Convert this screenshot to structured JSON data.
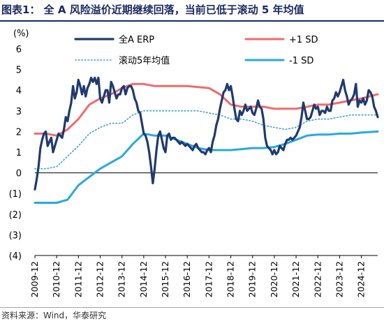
{
  "header": {
    "title": "图表1：  全 A 风险溢价近期继续回落，当前已低于滚动 5 年均值"
  },
  "footer": {
    "source": "资料来源：Wind，华泰研究"
  },
  "chart_data": {
    "type": "line",
    "ylabel": "(%)",
    "ylim": [
      -4,
      6
    ],
    "yticks": [
      "6",
      "5",
      "4",
      "3",
      "2",
      "1",
      "0",
      "(1)",
      "(2)",
      "(3)",
      "(4)"
    ],
    "xlim": [
      "2009-12",
      "2025-09"
    ],
    "categories": [
      "2009-12",
      "2010-12",
      "2011-12",
      "2012-12",
      "2013-12",
      "2014-12",
      "2015-12",
      "2016-12",
      "2017-12",
      "2018-12",
      "2019-12",
      "2020-12",
      "2021-12",
      "2022-12",
      "2023-12",
      "2024-12"
    ],
    "legend_position": "top",
    "grid": false,
    "series": [
      {
        "name": "全A ERP",
        "color": "#1f3a6e",
        "style": "solid-thick",
        "points": [
          [
            "2009-12",
            -0.8
          ],
          [
            "2010-01",
            -0.3
          ],
          [
            "2010-02",
            0.3
          ],
          [
            "2010-03",
            1.2
          ],
          [
            "2010-04",
            1.6
          ],
          [
            "2010-05",
            1.9
          ],
          [
            "2010-06",
            2.0
          ],
          [
            "2010-07",
            1.3
          ],
          [
            "2010-08",
            1.5
          ],
          [
            "2010-09",
            1.7
          ],
          [
            "2010-10",
            1.0
          ],
          [
            "2010-11",
            1.3
          ],
          [
            "2010-12",
            1.6
          ],
          [
            "2011-01",
            1.9
          ],
          [
            "2011-02",
            1.8
          ],
          [
            "2011-03",
            1.7
          ],
          [
            "2011-04",
            2.1
          ],
          [
            "2011-05",
            2.7
          ],
          [
            "2011-06",
            2.5
          ],
          [
            "2011-07",
            3.0
          ],
          [
            "2011-08",
            3.4
          ],
          [
            "2011-09",
            4.2
          ],
          [
            "2011-10",
            3.6
          ],
          [
            "2011-11",
            3.9
          ],
          [
            "2011-12",
            4.5
          ],
          [
            "2012-01",
            4.2
          ],
          [
            "2012-02",
            3.8
          ],
          [
            "2012-03",
            4.2
          ],
          [
            "2012-04",
            3.7
          ],
          [
            "2012-05",
            4.1
          ],
          [
            "2012-06",
            4.3
          ],
          [
            "2012-07",
            4.6
          ],
          [
            "2012-08",
            4.4
          ],
          [
            "2012-09",
            4.6
          ],
          [
            "2012-10",
            4.3
          ],
          [
            "2012-11",
            4.6
          ],
          [
            "2012-12",
            3.6
          ],
          [
            "2013-01",
            3.4
          ],
          [
            "2013-02",
            3.7
          ],
          [
            "2013-03",
            4.0
          ],
          [
            "2013-04",
            4.0
          ],
          [
            "2013-05",
            3.4
          ],
          [
            "2013-06",
            4.4
          ],
          [
            "2013-07",
            4.2
          ],
          [
            "2013-08",
            3.9
          ],
          [
            "2013-09",
            3.6
          ],
          [
            "2013-10",
            3.8
          ],
          [
            "2013-11",
            3.8
          ],
          [
            "2013-12",
            4.1
          ],
          [
            "2014-01",
            4.2
          ],
          [
            "2014-02",
            3.8
          ],
          [
            "2014-03",
            4.1
          ],
          [
            "2014-04",
            4.2
          ],
          [
            "2014-05",
            4.2
          ],
          [
            "2014-06",
            4.0
          ],
          [
            "2014-07",
            3.6
          ],
          [
            "2014-08",
            3.4
          ],
          [
            "2014-09",
            3.0
          ],
          [
            "2014-10",
            2.9
          ],
          [
            "2014-11",
            2.4
          ],
          [
            "2014-12",
            1.9
          ],
          [
            "2015-01",
            1.8
          ],
          [
            "2015-02",
            1.5
          ],
          [
            "2015-03",
            1.0
          ],
          [
            "2015-04",
            0.3
          ],
          [
            "2015-05",
            -0.5
          ],
          [
            "2015-06",
            0.2
          ],
          [
            "2015-07",
            1.1
          ],
          [
            "2015-08",
            1.8
          ],
          [
            "2015-09",
            2.0
          ],
          [
            "2015-10",
            1.6
          ],
          [
            "2015-11",
            1.2
          ],
          [
            "2015-12",
            1.0
          ],
          [
            "2016-01",
            1.8
          ],
          [
            "2016-02",
            1.9
          ],
          [
            "2016-03",
            1.6
          ],
          [
            "2016-04",
            1.7
          ],
          [
            "2016-05",
            1.7
          ],
          [
            "2016-06",
            1.6
          ],
          [
            "2016-07",
            1.5
          ],
          [
            "2016-08",
            1.4
          ],
          [
            "2016-09",
            1.5
          ],
          [
            "2016-10",
            1.4
          ],
          [
            "2016-11",
            1.3
          ],
          [
            "2016-12",
            1.4
          ],
          [
            "2017-01",
            1.3
          ],
          [
            "2017-02",
            1.2
          ],
          [
            "2017-03",
            1.1
          ],
          [
            "2017-04",
            1.3
          ],
          [
            "2017-05",
            1.4
          ],
          [
            "2017-06",
            1.2
          ],
          [
            "2017-07",
            1.1
          ],
          [
            "2017-08",
            1.0
          ],
          [
            "2017-09",
            1.0
          ],
          [
            "2017-10",
            0.9
          ],
          [
            "2017-11",
            1.1
          ],
          [
            "2017-12",
            1.2
          ],
          [
            "2018-01",
            1.0
          ],
          [
            "2018-02",
            1.5
          ],
          [
            "2018-03",
            1.8
          ],
          [
            "2018-04",
            2.3
          ],
          [
            "2018-05",
            2.6
          ],
          [
            "2018-06",
            3.1
          ],
          [
            "2018-07",
            3.5
          ],
          [
            "2018-08",
            3.9
          ],
          [
            "2018-09",
            4.0
          ],
          [
            "2018-10",
            4.3
          ],
          [
            "2018-11",
            4.0
          ],
          [
            "2018-12",
            4.2
          ],
          [
            "2019-01",
            3.7
          ],
          [
            "2019-02",
            3.1
          ],
          [
            "2019-03",
            2.6
          ],
          [
            "2019-04",
            2.5
          ],
          [
            "2019-05",
            3.0
          ],
          [
            "2019-06",
            2.8
          ],
          [
            "2019-07",
            3.0
          ],
          [
            "2019-08",
            3.3
          ],
          [
            "2019-09",
            3.0
          ],
          [
            "2019-10",
            3.1
          ],
          [
            "2019-11",
            3.2
          ],
          [
            "2019-12",
            2.9
          ],
          [
            "2020-01",
            2.8
          ],
          [
            "2020-02",
            3.1
          ],
          [
            "2020-03",
            3.5
          ],
          [
            "2020-04",
            3.2
          ],
          [
            "2020-05",
            3.1
          ],
          [
            "2020-06",
            2.6
          ],
          [
            "2020-07",
            1.7
          ],
          [
            "2020-08",
            1.3
          ],
          [
            "2020-09",
            1.2
          ],
          [
            "2020-10",
            1.1
          ],
          [
            "2020-11",
            0.9
          ],
          [
            "2020-12",
            1.1
          ],
          [
            "2021-01",
            0.9
          ],
          [
            "2021-02",
            1.0
          ],
          [
            "2021-03",
            1.3
          ],
          [
            "2021-04",
            1.2
          ],
          [
            "2021-05",
            1.1
          ],
          [
            "2021-06",
            1.4
          ],
          [
            "2021-07",
            1.6
          ],
          [
            "2021-08",
            1.6
          ],
          [
            "2021-09",
            1.7
          ],
          [
            "2021-10",
            1.6
          ],
          [
            "2021-11",
            1.7
          ],
          [
            "2021-12",
            1.8
          ],
          [
            "2022-01",
            2.0
          ],
          [
            "2022-02",
            2.2
          ],
          [
            "2022-03",
            2.7
          ],
          [
            "2022-04",
            3.4
          ],
          [
            "2022-05",
            3.0
          ],
          [
            "2022-06",
            2.6
          ],
          [
            "2022-07",
            2.6
          ],
          [
            "2022-08",
            2.7
          ],
          [
            "2022-09",
            3.0
          ],
          [
            "2022-10",
            3.3
          ],
          [
            "2022-11",
            3.1
          ],
          [
            "2022-12",
            3.2
          ],
          [
            "2023-01",
            2.8
          ],
          [
            "2023-02",
            3.0
          ],
          [
            "2023-03",
            3.0
          ],
          [
            "2023-04",
            2.9
          ],
          [
            "2023-05",
            3.2
          ],
          [
            "2023-06",
            3.0
          ],
          [
            "2023-07",
            3.0
          ],
          [
            "2023-08",
            3.5
          ],
          [
            "2023-09",
            3.6
          ],
          [
            "2023-10",
            3.9
          ],
          [
            "2023-11",
            3.7
          ],
          [
            "2023-12",
            3.9
          ],
          [
            "2024-01",
            4.2
          ],
          [
            "2024-02",
            4.5
          ],
          [
            "2024-03",
            4.0
          ],
          [
            "2024-04",
            3.7
          ],
          [
            "2024-05",
            3.3
          ],
          [
            "2024-06",
            3.5
          ],
          [
            "2024-07",
            3.6
          ],
          [
            "2024-08",
            3.8
          ],
          [
            "2024-09",
            4.3
          ],
          [
            "2024-10",
            3.2
          ],
          [
            "2024-11",
            3.5
          ],
          [
            "2024-12",
            3.4
          ],
          [
            "2025-01",
            3.6
          ],
          [
            "2025-02",
            3.3
          ],
          [
            "2025-03",
            3.5
          ],
          [
            "2025-04",
            4.0
          ],
          [
            "2025-05",
            3.9
          ],
          [
            "2025-06",
            3.7
          ],
          [
            "2025-07",
            3.2
          ],
          [
            "2025-08",
            3.0
          ],
          [
            "2025-09",
            2.7
          ]
        ]
      },
      {
        "name": "+1 SD",
        "color": "#f06b6b",
        "style": "solid",
        "points": [
          [
            "2009-12",
            1.9
          ],
          [
            "2010-06",
            1.9
          ],
          [
            "2010-12",
            1.8
          ],
          [
            "2011-06",
            2.1
          ],
          [
            "2011-12",
            2.6
          ],
          [
            "2012-06",
            3.3
          ],
          [
            "2012-12",
            3.6
          ],
          [
            "2013-06",
            3.8
          ],
          [
            "2013-12",
            4.1
          ],
          [
            "2014-06",
            4.3
          ],
          [
            "2014-12",
            4.3
          ],
          [
            "2015-06",
            4.2
          ],
          [
            "2015-12",
            4.2
          ],
          [
            "2016-06",
            4.2
          ],
          [
            "2016-12",
            4.2
          ],
          [
            "2017-06",
            4.15
          ],
          [
            "2017-12",
            4.1
          ],
          [
            "2018-06",
            3.8
          ],
          [
            "2018-12",
            3.3
          ],
          [
            "2019-06",
            3.2
          ],
          [
            "2019-12",
            3.2
          ],
          [
            "2020-06",
            3.2
          ],
          [
            "2020-12",
            3.1
          ],
          [
            "2021-06",
            3.1
          ],
          [
            "2021-12",
            3.1
          ],
          [
            "2022-06",
            3.2
          ],
          [
            "2022-12",
            3.3
          ],
          [
            "2023-06",
            3.3
          ],
          [
            "2023-12",
            3.4
          ],
          [
            "2024-06",
            3.5
          ],
          [
            "2024-12",
            3.6
          ],
          [
            "2025-09",
            3.8
          ]
        ]
      },
      {
        "name": "滚动5年均值",
        "color": "#3b9fd6",
        "style": "dotted",
        "points": [
          [
            "2009-12",
            0.2
          ],
          [
            "2010-06",
            0.2
          ],
          [
            "2010-12",
            0.3
          ],
          [
            "2011-06",
            0.8
          ],
          [
            "2011-12",
            1.3
          ],
          [
            "2012-06",
            1.9
          ],
          [
            "2012-12",
            2.2
          ],
          [
            "2013-06",
            2.4
          ],
          [
            "2013-12",
            2.4
          ],
          [
            "2014-06",
            2.8
          ],
          [
            "2014-12",
            3.0
          ],
          [
            "2015-06",
            3.0
          ],
          [
            "2015-12",
            3.0
          ],
          [
            "2016-06",
            3.0
          ],
          [
            "2016-12",
            3.0
          ],
          [
            "2017-06",
            3.0
          ],
          [
            "2017-12",
            2.9
          ],
          [
            "2018-06",
            2.8
          ],
          [
            "2018-12",
            2.6
          ],
          [
            "2019-06",
            2.6
          ],
          [
            "2019-12",
            2.5
          ],
          [
            "2020-06",
            2.3
          ],
          [
            "2020-12",
            2.2
          ],
          [
            "2021-06",
            2.1
          ],
          [
            "2021-12",
            2.2
          ],
          [
            "2022-06",
            2.5
          ],
          [
            "2022-12",
            2.6
          ],
          [
            "2023-06",
            2.6
          ],
          [
            "2023-12",
            2.7
          ],
          [
            "2024-06",
            2.8
          ],
          [
            "2024-12",
            2.8
          ],
          [
            "2025-09",
            2.8
          ]
        ]
      },
      {
        "name": "-1 SD",
        "color": "#2aa8e0",
        "style": "solid",
        "points": [
          [
            "2009-12",
            -1.45
          ],
          [
            "2010-06",
            -1.45
          ],
          [
            "2010-12",
            -1.45
          ],
          [
            "2011-06",
            -1.3
          ],
          [
            "2011-12",
            -0.6
          ],
          [
            "2012-06",
            -0.2
          ],
          [
            "2012-12",
            0.2
          ],
          [
            "2013-06",
            0.5
          ],
          [
            "2013-12",
            0.8
          ],
          [
            "2014-06",
            1.4
          ],
          [
            "2014-12",
            1.9
          ],
          [
            "2015-06",
            1.8
          ],
          [
            "2015-12",
            1.8
          ],
          [
            "2016-06",
            1.6
          ],
          [
            "2016-12",
            1.4
          ],
          [
            "2017-06",
            1.2
          ],
          [
            "2017-12",
            1.1
          ],
          [
            "2018-06",
            1.1
          ],
          [
            "2018-12",
            1.1
          ],
          [
            "2019-06",
            1.15
          ],
          [
            "2019-12",
            1.2
          ],
          [
            "2020-06",
            1.2
          ],
          [
            "2020-12",
            1.25
          ],
          [
            "2021-06",
            1.4
          ],
          [
            "2021-12",
            1.6
          ],
          [
            "2022-06",
            1.8
          ],
          [
            "2022-12",
            1.85
          ],
          [
            "2023-06",
            1.85
          ],
          [
            "2023-12",
            1.9
          ],
          [
            "2024-06",
            1.9
          ],
          [
            "2024-12",
            1.95
          ],
          [
            "2025-09",
            2.0
          ]
        ]
      }
    ]
  }
}
